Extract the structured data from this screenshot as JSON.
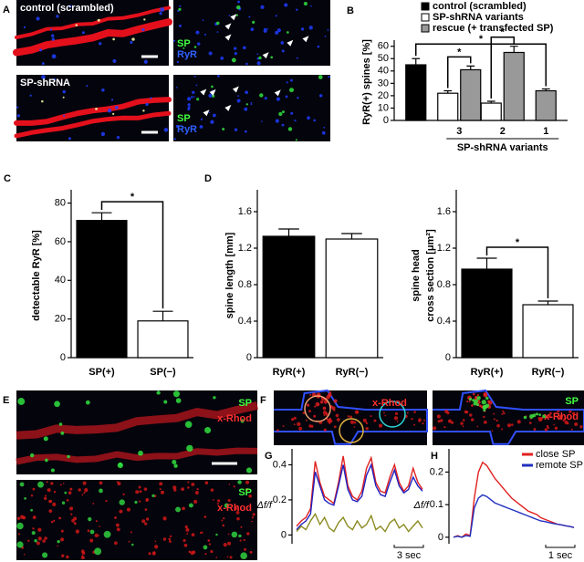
{
  "images": [
    {
      "panel": "A",
      "labels": [
        "control (scrambled)"
      ]
    },
    {
      "labels": [
        "SP",
        "RyR"
      ]
    },
    {
      "labels": [
        "SP-shRNA"
      ]
    },
    {
      "labels": [
        "SP",
        "RyR"
      ]
    },
    {
      "panel": "E",
      "labels": [
        "SP",
        "x-Rhod"
      ]
    },
    {
      "labels": [
        "SP",
        "x-Rhod"
      ]
    },
    {
      "panel": "F",
      "labels": [
        "x-Rhod"
      ]
    },
    {
      "labels": [
        "SP",
        "x-Rhod"
      ]
    }
  ],
  "chart_data": [
    {
      "type": "bar",
      "panel": "B",
      "ylabel": "RyR(+) spines [%]",
      "xlabel": "SP-shRNA variants",
      "categories": [
        null,
        "3",
        "2",
        "1"
      ],
      "series": [
        {
          "name": "control (scrambled)",
          "color": "#000000",
          "values": [
            45,
            null,
            null,
            null
          ],
          "errors": [
            5,
            null,
            null,
            null
          ]
        },
        {
          "name": "SP-shRNA variants",
          "color": "#ffffff",
          "values": [
            null,
            22,
            14,
            null
          ],
          "errors": [
            null,
            2,
            1.5,
            null
          ]
        },
        {
          "name": "rescue (+ transfected SP)",
          "color": "#999999",
          "values": [
            null,
            41,
            55,
            24
          ],
          "errors": [
            null,
            3,
            5,
            1.5
          ]
        }
      ],
      "ylim": [
        0,
        62
      ],
      "yticks": [
        0,
        10,
        20,
        30,
        40,
        50,
        60
      ],
      "legend": "top-right",
      "annotations": [
        "*",
        "*",
        "*"
      ]
    },
    {
      "type": "bar",
      "panel": "C",
      "ylabel": "detectable RyR [%]",
      "categories": [
        "SP(+)",
        "SP(−)"
      ],
      "values": [
        71,
        19
      ],
      "errors": [
        4,
        5
      ],
      "colors": [
        "#000000",
        "#ffffff"
      ],
      "ylim": [
        0,
        85
      ],
      "yticks": [
        0,
        20,
        40,
        60,
        80
      ],
      "annotations": [
        "*"
      ]
    },
    {
      "type": "bar",
      "panel": "D",
      "ylabel": "spine length [mm]",
      "categories": [
        "RyR(+)",
        "RyR(−)"
      ],
      "values": [
        1.33,
        1.3
      ],
      "errors": [
        0.08,
        0.06
      ],
      "colors": [
        "#000000",
        "#ffffff"
      ],
      "ylim": [
        0,
        1.8
      ],
      "yticks": [
        0,
        0.4,
        0.8,
        1.2,
        1.6
      ]
    },
    {
      "type": "bar",
      "ylabel": [
        "spine head",
        "cross section [μm²]"
      ],
      "categories": [
        "RyR(+)",
        "RyR(−)"
      ],
      "values": [
        0.97,
        0.58
      ],
      "errors": [
        0.12,
        0.04
      ],
      "colors": [
        "#000000",
        "#ffffff"
      ],
      "ylim": [
        0,
        1.8
      ],
      "yticks": [
        0,
        0.4,
        0.8,
        1.2,
        1.6
      ],
      "annotations": [
        "*"
      ]
    },
    {
      "type": "line",
      "panel": "G",
      "ylabel": "Δf/f",
      "series": [
        {
          "color": "#e02020",
          "values": [
            0.05,
            0.08,
            0.1,
            0.15,
            0.42,
            0.3,
            0.22,
            0.2,
            0.18,
            0.3,
            0.45,
            0.28,
            0.22,
            0.2,
            0.25,
            0.38,
            0.44,
            0.3,
            0.25,
            0.24,
            0.33,
            0.4,
            0.3,
            0.25,
            0.28,
            0.38,
            0.3,
            0.26
          ]
        },
        {
          "color": "#2020c0",
          "values": [
            0.03,
            0.06,
            0.08,
            0.12,
            0.36,
            0.28,
            0.2,
            0.18,
            0.17,
            0.28,
            0.4,
            0.26,
            0.2,
            0.19,
            0.22,
            0.34,
            0.4,
            0.28,
            0.23,
            0.22,
            0.3,
            0.37,
            0.28,
            0.24,
            0.26,
            0.33,
            0.28,
            0.25
          ]
        },
        {
          "color": "#8b8b20",
          "values": [
            0.02,
            0.05,
            0.03,
            0.08,
            0.12,
            0.06,
            0.1,
            0.04,
            0.02,
            0.07,
            0.1,
            0.05,
            0.03,
            0.08,
            0.04,
            0.06,
            0.11,
            0.03,
            0.05,
            0.02,
            0.07,
            0.09,
            0.04,
            0.06,
            0.02,
            0.05,
            0.08,
            0.04
          ]
        }
      ],
      "ylim": [
        -0.05,
        0.47
      ],
      "yticks": [
        0,
        0.2,
        0.4
      ],
      "scalebar_label": "3 sec"
    },
    {
      "type": "line",
      "panel": "H",
      "ylabel": "Δf/f",
      "series": [
        {
          "name": "close SP",
          "color": "#e02020",
          "values": [
            0,
            0.005,
            0,
            0.01,
            0.005,
            0.12,
            0.2,
            0.23,
            0.22,
            0.2,
            0.18,
            0.165,
            0.15,
            0.135,
            0.12,
            0.11,
            0.1,
            0.09,
            0.08,
            0.075,
            0.07,
            0.06,
            0.055,
            0.05,
            0.045,
            0.04,
            0.038,
            0.035,
            0.033,
            0.03
          ]
        },
        {
          "name": "remote SP",
          "color": "#2030c0",
          "values": [
            0,
            0.003,
            0,
            0.005,
            0.003,
            0.09,
            0.12,
            0.13,
            0.125,
            0.115,
            0.105,
            0.1,
            0.095,
            0.09,
            0.085,
            0.08,
            0.075,
            0.07,
            0.065,
            0.06,
            0.055,
            0.05,
            0.048,
            0.045,
            0.042,
            0.04,
            0.038,
            0.035,
            0.033,
            0.03
          ]
        }
      ],
      "ylim": [
        -0.02,
        0.26
      ],
      "yticks": [
        0,
        0.1,
        0.2
      ],
      "scalebar_label": "1 sec",
      "legend": "top-right"
    }
  ]
}
